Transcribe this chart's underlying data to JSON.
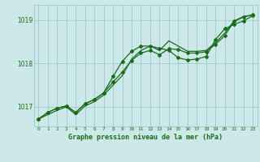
{
  "title": "Graphe pression niveau de la mer (hPa)",
  "background_color": "#cce8e8",
  "plot_bg_color": "#cce8e8",
  "grid_color": "#9bbfbf",
  "line_color": "#1a6b1a",
  "x_labels": [
    "0",
    "1",
    "2",
    "3",
    "4",
    "5",
    "6",
    "7",
    "8",
    "9",
    "10",
    "11",
    "12",
    "13",
    "14",
    "15",
    "16",
    "17",
    "18",
    "19",
    "20",
    "21",
    "22",
    "23"
  ],
  "xlim": [
    -0.5,
    23.5
  ],
  "ylim": [
    1016.55,
    1019.35
  ],
  "yticks": [
    1017,
    1018,
    1019
  ],
  "series1": [
    1016.72,
    1016.87,
    1016.97,
    1017.02,
    1016.87,
    1017.07,
    1017.17,
    1017.32,
    1017.57,
    1017.8,
    1018.07,
    1018.24,
    1018.3,
    1018.2,
    1018.34,
    1018.32,
    1018.24,
    1018.24,
    1018.27,
    1018.44,
    1018.64,
    1018.97,
    1019.07,
    1019.12
  ],
  "series2": [
    1016.72,
    1016.87,
    1016.97,
    1017.02,
    1016.87,
    1017.07,
    1017.17,
    1017.32,
    1017.7,
    1018.05,
    1018.28,
    1018.4,
    1018.4,
    1018.35,
    1018.3,
    1018.13,
    1018.08,
    1018.1,
    1018.16,
    1018.55,
    1018.8,
    1018.9,
    1018.98,
    1019.1
  ],
  "series3": [
    1016.72,
    1016.82,
    1016.92,
    1017.0,
    1016.82,
    1017.02,
    1017.12,
    1017.27,
    1017.5,
    1017.72,
    1018.1,
    1018.3,
    1018.4,
    1018.3,
    1018.52,
    1018.4,
    1018.28,
    1018.28,
    1018.3,
    1018.48,
    1018.7,
    1018.98,
    1019.08,
    1019.12
  ]
}
